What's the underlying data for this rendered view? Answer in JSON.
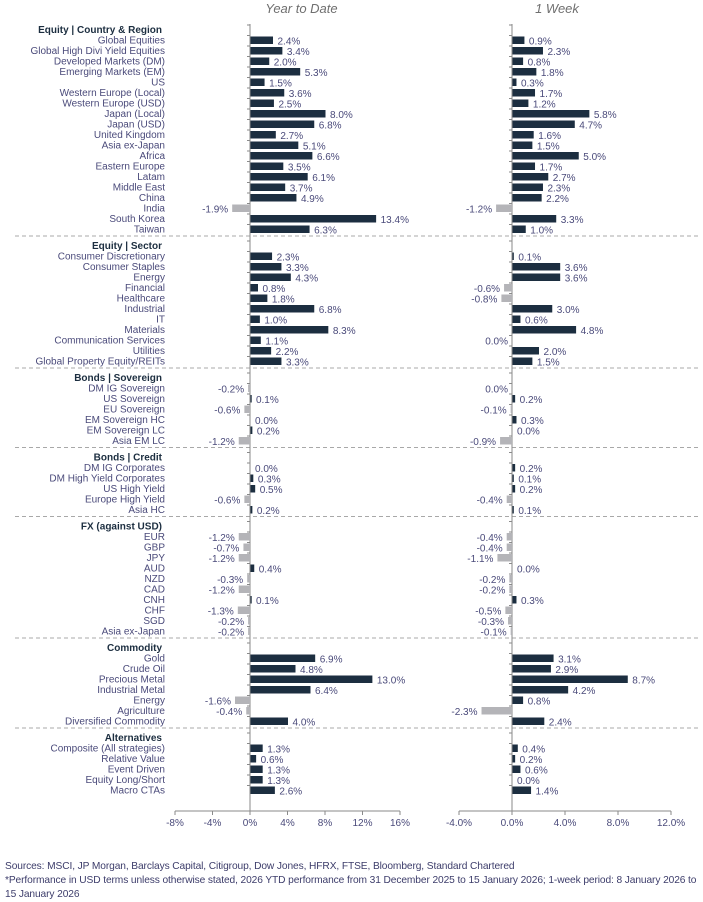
{
  "chart_data": {
    "type": "bar",
    "orientation": "horizontal",
    "panels": [
      {
        "title": "Year to Date",
        "xlim": [
          -8,
          16
        ],
        "ticks": [
          -8,
          -4,
          0,
          4,
          8,
          12,
          16
        ],
        "tick_labels": [
          "-8%",
          "-4%",
          "0%",
          "4%",
          "8%",
          "12%",
          "16%"
        ]
      },
      {
        "title": "1 Week",
        "xlim": [
          -4,
          12
        ],
        "ticks": [
          -4,
          0,
          4,
          8,
          12
        ],
        "tick_labels": [
          "-4.0%",
          "0.0%",
          "4.0%",
          "8.0%",
          "12.0%"
        ]
      }
    ],
    "colors": {
      "positive": "#1c2e40",
      "negative": "#b4b4b8",
      "label": "#4a4a7a",
      "heading": "#1c2e40"
    },
    "groups": [
      {
        "name": "Equity | Country & Region",
        "items": [
          {
            "label": "Global Equities",
            "ytd": 2.4,
            "ytd_label": "2.4%",
            "wk": 0.9,
            "wk_label": "0.9%"
          },
          {
            "label": "Global High Divi Yield Equities",
            "ytd": 3.4,
            "ytd_label": "3.4%",
            "wk": 2.3,
            "wk_label": "2.3%"
          },
          {
            "label": "Developed Markets (DM)",
            "ytd": 2.0,
            "ytd_label": "2.0%",
            "wk": 0.8,
            "wk_label": "0.8%"
          },
          {
            "label": "Emerging Markets (EM)",
            "ytd": 5.3,
            "ytd_label": "5.3%",
            "wk": 1.8,
            "wk_label": "1.8%"
          },
          {
            "label": "US",
            "ytd": 1.5,
            "ytd_label": "1.5%",
            "wk": 0.3,
            "wk_label": "0.3%"
          },
          {
            "label": "Western Europe (Local)",
            "ytd": 3.6,
            "ytd_label": "3.6%",
            "wk": 1.7,
            "wk_label": "1.7%"
          },
          {
            "label": "Western Europe (USD)",
            "ytd": 2.5,
            "ytd_label": "2.5%",
            "wk": 1.2,
            "wk_label": "1.2%"
          },
          {
            "label": "Japan (Local)",
            "ytd": 8.0,
            "ytd_label": "8.0%",
            "wk": 5.8,
            "wk_label": "5.8%"
          },
          {
            "label": "Japan (USD)",
            "ytd": 6.8,
            "ytd_label": "6.8%",
            "wk": 4.7,
            "wk_label": "4.7%"
          },
          {
            "label": "United Kingdom",
            "ytd": 2.7,
            "ytd_label": "2.7%",
            "wk": 1.6,
            "wk_label": "1.6%"
          },
          {
            "label": "Asia ex-Japan",
            "ytd": 5.1,
            "ytd_label": "5.1%",
            "wk": 1.5,
            "wk_label": "1.5%"
          },
          {
            "label": "Africa",
            "ytd": 6.6,
            "ytd_label": "6.6%",
            "wk": 5.0,
            "wk_label": "5.0%"
          },
          {
            "label": "Eastern Europe",
            "ytd": 3.5,
            "ytd_label": "3.5%",
            "wk": 1.7,
            "wk_label": "1.7%"
          },
          {
            "label": "Latam",
            "ytd": 6.1,
            "ytd_label": "6.1%",
            "wk": 2.7,
            "wk_label": "2.7%"
          },
          {
            "label": "Middle East",
            "ytd": 3.7,
            "ytd_label": "3.7%",
            "wk": 2.3,
            "wk_label": "2.3%"
          },
          {
            "label": "China",
            "ytd": 4.9,
            "ytd_label": "4.9%",
            "wk": 2.2,
            "wk_label": "2.2%"
          },
          {
            "label": "India",
            "ytd": -1.9,
            "ytd_label": "-1.9%",
            "wk": -1.2,
            "wk_label": "-1.2%"
          },
          {
            "label": "South Korea",
            "ytd": 13.4,
            "ytd_label": "13.4%",
            "wk": 3.3,
            "wk_label": "3.3%"
          },
          {
            "label": "Taiwan",
            "ytd": 6.3,
            "ytd_label": "6.3%",
            "wk": 1.0,
            "wk_label": "1.0%"
          }
        ]
      },
      {
        "name": "Equity | Sector",
        "items": [
          {
            "label": "Consumer Discretionary",
            "ytd": 2.3,
            "ytd_label": "2.3%",
            "wk": 0.1,
            "wk_label": "0.1%"
          },
          {
            "label": "Consumer Staples",
            "ytd": 3.3,
            "ytd_label": "3.3%",
            "wk": 3.6,
            "wk_label": "3.6%"
          },
          {
            "label": "Energy",
            "ytd": 4.3,
            "ytd_label": "4.3%",
            "wk": 3.6,
            "wk_label": "3.6%"
          },
          {
            "label": "Financial",
            "ytd": 0.8,
            "ytd_label": "0.8%",
            "wk": -0.6,
            "wk_label": "-0.6%"
          },
          {
            "label": "Healthcare",
            "ytd": 1.8,
            "ytd_label": "1.8%",
            "wk": -0.8,
            "wk_label": "-0.8%"
          },
          {
            "label": "Industrial",
            "ytd": 6.8,
            "ytd_label": "6.8%",
            "wk": 3.0,
            "wk_label": "3.0%"
          },
          {
            "label": "IT",
            "ytd": 1.0,
            "ytd_label": "1.0%",
            "wk": 0.6,
            "wk_label": "0.6%"
          },
          {
            "label": "Materials",
            "ytd": 8.3,
            "ytd_label": "8.3%",
            "wk": 4.8,
            "wk_label": "4.8%"
          },
          {
            "label": "Communication Services",
            "ytd": 1.1,
            "ytd_label": "1.1%",
            "wk": 0.0,
            "wk_label": "0.0%",
            "wk_neg_zero": true
          },
          {
            "label": "Utilities",
            "ytd": 2.2,
            "ytd_label": "2.2%",
            "wk": 2.0,
            "wk_label": "2.0%"
          },
          {
            "label": "Global Property Equity/REITs",
            "ytd": 3.3,
            "ytd_label": "3.3%",
            "wk": 1.5,
            "wk_label": "1.5%"
          }
        ]
      },
      {
        "name": "Bonds | Sovereign",
        "items": [
          {
            "label": "DM IG Sovereign",
            "ytd": -0.2,
            "ytd_label": "-0.2%",
            "wk": 0.0,
            "wk_label": "0.0%",
            "wk_neg_zero": true
          },
          {
            "label": "US Sovereign",
            "ytd": 0.1,
            "ytd_label": "0.1%",
            "wk": 0.2,
            "wk_label": "0.2%"
          },
          {
            "label": "EU Sovereign",
            "ytd": -0.6,
            "ytd_label": "-0.6%",
            "wk": -0.1,
            "wk_label": "-0.1%"
          },
          {
            "label": "EM Sovereign HC",
            "ytd": 0.0,
            "ytd_label": "0.0%",
            "wk": 0.3,
            "wk_label": "0.3%"
          },
          {
            "label": "EM Sovereign LC",
            "ytd": 0.2,
            "ytd_label": "0.2%",
            "wk": 0.0,
            "wk_label": "0.0%"
          },
          {
            "label": "Asia EM LC",
            "ytd": -1.2,
            "ytd_label": "-1.2%",
            "wk": -0.9,
            "wk_label": "-0.9%"
          }
        ]
      },
      {
        "name": "Bonds | Credit",
        "items": [
          {
            "label": "DM IG Corporates",
            "ytd": 0.0,
            "ytd_label": "0.0%",
            "wk": 0.2,
            "wk_label": "0.2%"
          },
          {
            "label": "DM High Yield Corporates",
            "ytd": 0.3,
            "ytd_label": "0.3%",
            "wk": 0.1,
            "wk_label": "0.1%"
          },
          {
            "label": "US High Yield",
            "ytd": 0.5,
            "ytd_label": "0.5%",
            "wk": 0.2,
            "wk_label": "0.2%"
          },
          {
            "label": "Europe High Yield",
            "ytd": -0.6,
            "ytd_label": "-0.6%",
            "wk": -0.4,
            "wk_label": "-0.4%"
          },
          {
            "label": "Asia HC",
            "ytd": 0.2,
            "ytd_label": "0.2%",
            "wk": 0.1,
            "wk_label": "0.1%"
          }
        ]
      },
      {
        "name": "FX (against USD)",
        "items": [
          {
            "label": "EUR",
            "ytd": -1.2,
            "ytd_label": "-1.2%",
            "wk": -0.4,
            "wk_label": "-0.4%"
          },
          {
            "label": "GBP",
            "ytd": -0.7,
            "ytd_label": "-0.7%",
            "wk": -0.4,
            "wk_label": "-0.4%"
          },
          {
            "label": "JPY",
            "ytd": -1.2,
            "ytd_label": "-1.2%",
            "wk": -1.1,
            "wk_label": "-1.1%"
          },
          {
            "label": "AUD",
            "ytd": 0.4,
            "ytd_label": "0.4%",
            "wk": 0.0,
            "wk_label": "0.0%"
          },
          {
            "label": "NZD",
            "ytd": -0.3,
            "ytd_label": "-0.3%",
            "wk": -0.2,
            "wk_label": "-0.2%"
          },
          {
            "label": "CAD",
            "ytd": -1.2,
            "ytd_label": "-1.2%",
            "wk": -0.2,
            "wk_label": "-0.2%"
          },
          {
            "label": "CNH",
            "ytd": 0.1,
            "ytd_label": "0.1%",
            "wk": 0.3,
            "wk_label": "0.3%"
          },
          {
            "label": "CHF",
            "ytd": -1.3,
            "ytd_label": "-1.3%",
            "wk": -0.5,
            "wk_label": "-0.5%"
          },
          {
            "label": "SGD",
            "ytd": -0.2,
            "ytd_label": "-0.2%",
            "wk": -0.3,
            "wk_label": "-0.3%"
          },
          {
            "label": "Asia ex-Japan",
            "ytd": -0.2,
            "ytd_label": "-0.2%",
            "wk": -0.1,
            "wk_label": "-0.1%"
          }
        ]
      },
      {
        "name": "Commodity",
        "items": [
          {
            "label": "Gold",
            "ytd": 6.9,
            "ytd_label": "6.9%",
            "wk": 3.1,
            "wk_label": "3.1%"
          },
          {
            "label": "Crude Oil",
            "ytd": 4.8,
            "ytd_label": "4.8%",
            "wk": 2.9,
            "wk_label": "2.9%"
          },
          {
            "label": "Precious Metal",
            "ytd": 13.0,
            "ytd_label": "13.0%",
            "wk": 8.7,
            "wk_label": "8.7%"
          },
          {
            "label": "Industrial Metal",
            "ytd": 6.4,
            "ytd_label": "6.4%",
            "wk": 4.2,
            "wk_label": "4.2%"
          },
          {
            "label": "Energy",
            "ytd": -1.6,
            "ytd_label": "-1.6%",
            "wk": 0.8,
            "wk_label": "0.8%"
          },
          {
            "label": "Agriculture",
            "ytd": -0.4,
            "ytd_label": "-0.4%",
            "wk": -2.3,
            "wk_label": "-2.3%"
          },
          {
            "label": "Diversified Commodity",
            "ytd": 4.0,
            "ytd_label": "4.0%",
            "wk": 2.4,
            "wk_label": "2.4%"
          }
        ]
      },
      {
        "name": "Alternatives",
        "items": [
          {
            "label": "Composite (All strategies)",
            "ytd": 1.3,
            "ytd_label": "1.3%",
            "wk": 0.4,
            "wk_label": "0.4%"
          },
          {
            "label": "Relative Value",
            "ytd": 0.6,
            "ytd_label": "0.6%",
            "wk": 0.2,
            "wk_label": "0.2%"
          },
          {
            "label": "Event Driven",
            "ytd": 1.3,
            "ytd_label": "1.3%",
            "wk": 0.6,
            "wk_label": "0.6%"
          },
          {
            "label": "Equity Long/Short",
            "ytd": 1.3,
            "ytd_label": "1.3%",
            "wk": 0.0,
            "wk_label": "0.0%"
          },
          {
            "label": "Macro CTAs",
            "ytd": 2.6,
            "ytd_label": "2.6%",
            "wk": 1.4,
            "wk_label": "1.4%"
          }
        ]
      }
    ]
  },
  "footer": {
    "sources": "Sources: MSCI, JP Morgan, Barclays Capital, Citigroup, Dow Jones, HFRX, FTSE, Bloomberg, Standard Chartered",
    "note": "*Performance in USD terms unless otherwise stated, 2026 YTD performance from 31 December 2025 to 15 January 2026; 1-week period: 8 January 2026 to 15 January 2026"
  }
}
